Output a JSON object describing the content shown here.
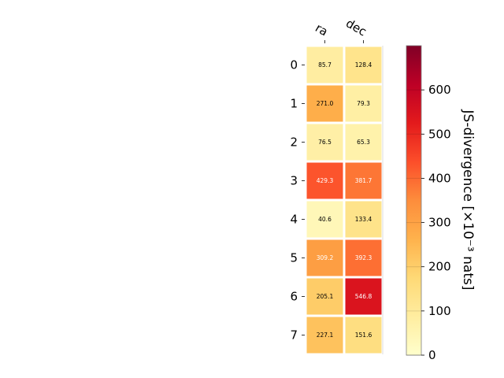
{
  "chart_data": {
    "type": "heatmap",
    "columns": [
      "ra",
      "dec"
    ],
    "rows": [
      "0",
      "1",
      "2",
      "3",
      "4",
      "5",
      "6",
      "7"
    ],
    "values": [
      [
        85.7,
        128.4
      ],
      [
        271.0,
        79.3
      ],
      [
        76.5,
        65.3
      ],
      [
        429.3,
        381.7
      ],
      [
        40.6,
        133.4
      ],
      [
        309.2,
        392.3
      ],
      [
        205.1,
        546.8
      ],
      [
        227.1,
        151.6
      ]
    ],
    "colorbar": {
      "label": "JS-divergence [×10⁻³ nats]",
      "range": [
        0,
        700
      ],
      "ticks": [
        0,
        100,
        200,
        300,
        400,
        500,
        600
      ],
      "colormap": "YlOrRd"
    },
    "cell_label_threshold": 300,
    "colors": {
      "label_dark": "#000000",
      "label_light": "#ffffff",
      "cell_border": "#ffffff"
    }
  }
}
